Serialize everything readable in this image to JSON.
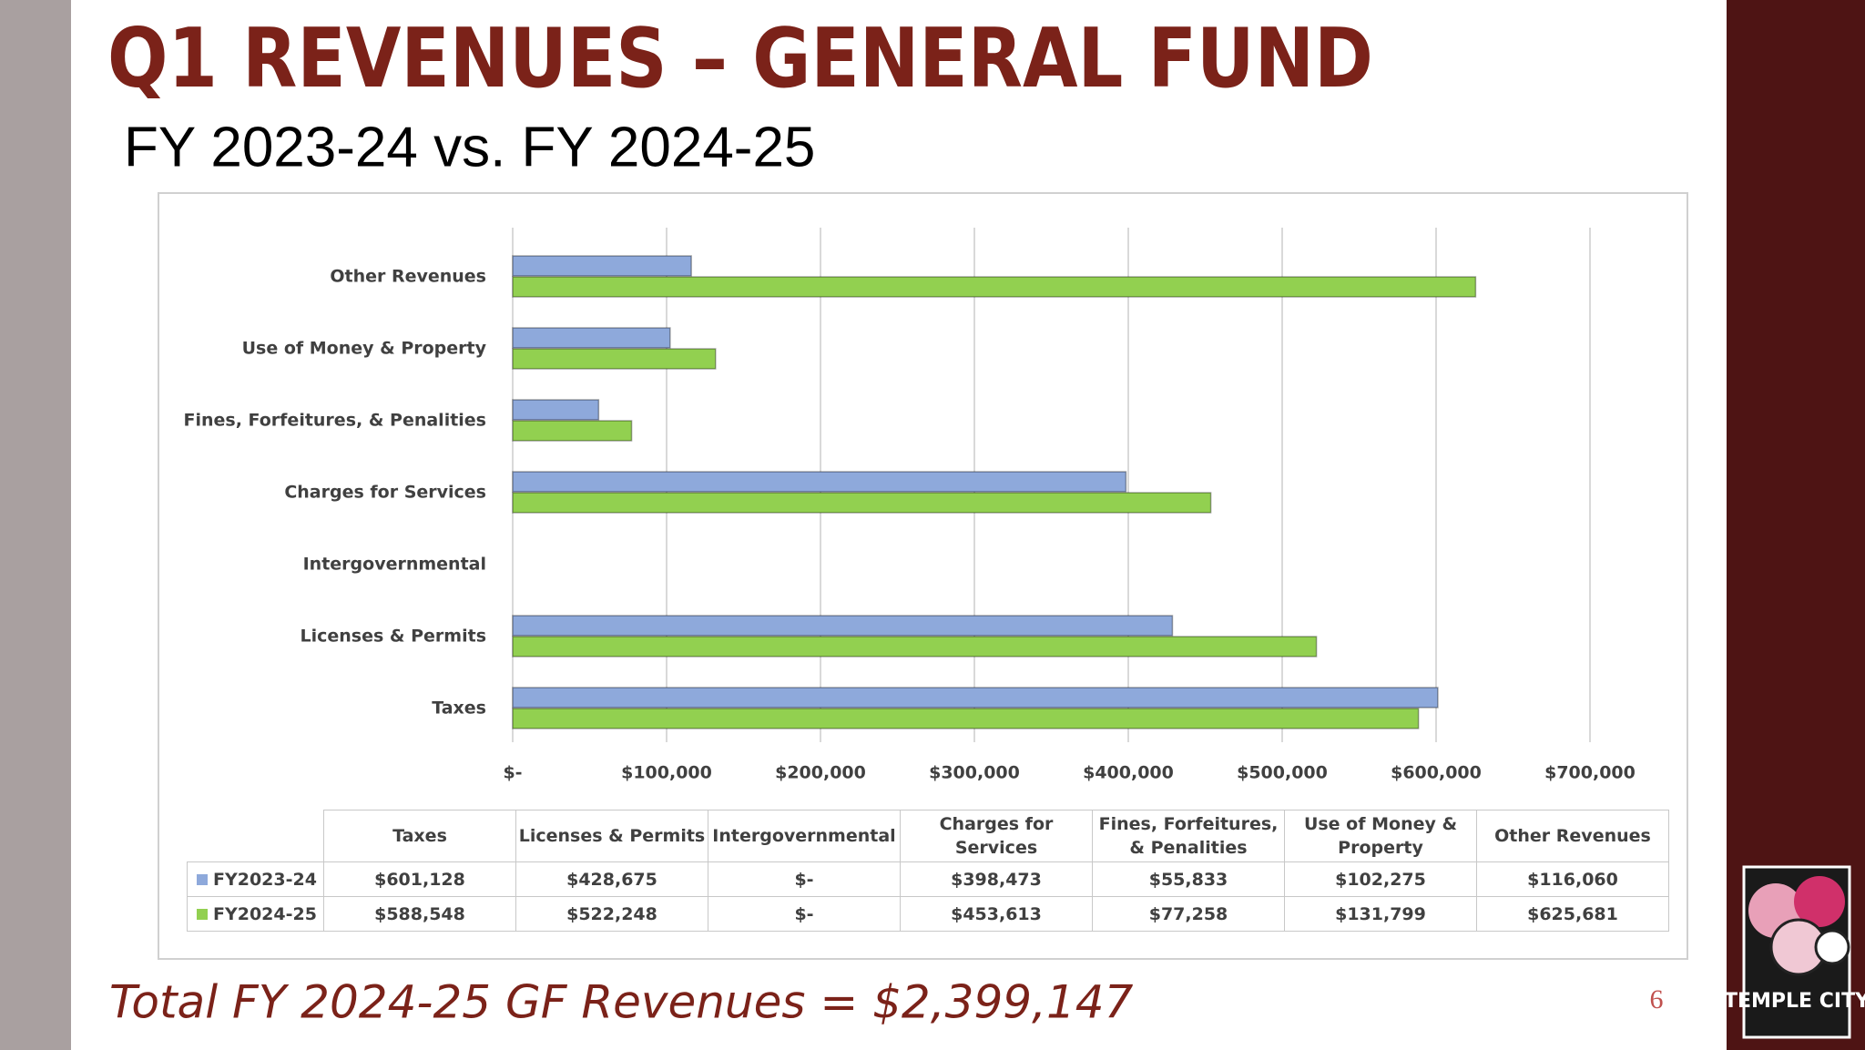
{
  "slide": {
    "title": "Q1 REVENUES – GENERAL FUND",
    "subtitle": "FY 2023-24 vs. FY 2024-25",
    "footer": "Total FY 2024-25 GF Revenues = $2,399,147",
    "page_number": "6",
    "logo_text": "TEMPLE CITY"
  },
  "chart_data": {
    "type": "bar",
    "orientation": "horizontal",
    "grid": true,
    "categories": [
      "Taxes",
      "Licenses & Permits",
      "Intergovernmental",
      "Charges for Services",
      "Fines, Forfeitures, & Penalities",
      "Use of Money & Property",
      "Other Revenues"
    ],
    "series": [
      {
        "name": "FY2023-24",
        "color": "#8EA9DB",
        "values": [
          601128,
          428675,
          0,
          398473,
          55833,
          102275,
          116060
        ],
        "value_labels": [
          "$601,128",
          "$428,675",
          "$-",
          "$398,473",
          "$55,833",
          "$102,275",
          "$116,060"
        ]
      },
      {
        "name": "FY2024-25",
        "color": "#92D050",
        "values": [
          588548,
          522248,
          0,
          453613,
          77258,
          131799,
          625681
        ],
        "value_labels": [
          "$588,548",
          "$522,248",
          "$-",
          "$453,613",
          "$77,258",
          "$131,799",
          "$625,681"
        ]
      }
    ],
    "xlim": [
      0,
      700000
    ],
    "xticks": [
      {
        "value": 0,
        "label": "$-"
      },
      {
        "value": 100000,
        "label": "$100,000"
      },
      {
        "value": 200000,
        "label": "$200,000"
      },
      {
        "value": 300000,
        "label": "$300,000"
      },
      {
        "value": 400000,
        "label": "$400,000"
      },
      {
        "value": 500000,
        "label": "$500,000"
      },
      {
        "value": 600000,
        "label": "$600,000"
      },
      {
        "value": 700000,
        "label": "$700,000"
      }
    ]
  }
}
